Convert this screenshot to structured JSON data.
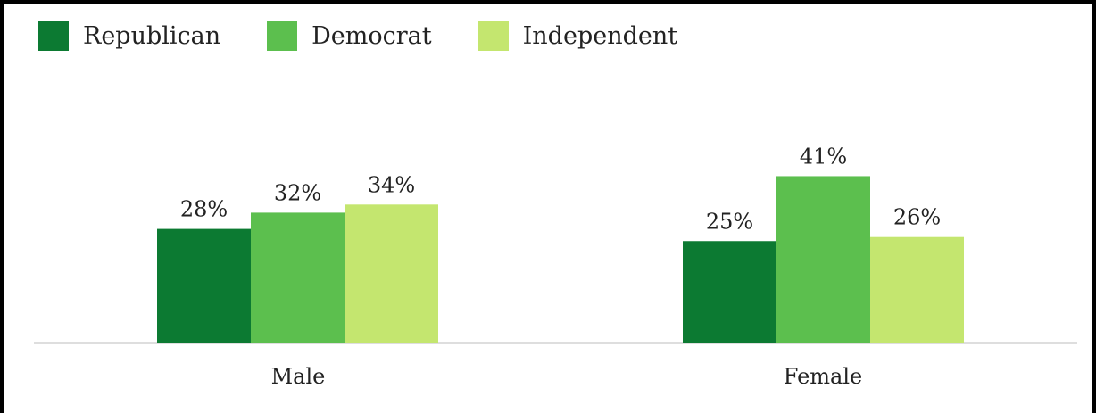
{
  "chart_data": {
    "type": "bar",
    "categories": [
      "Male",
      "Female"
    ],
    "series": [
      {
        "name": "Republican",
        "values": [
          28,
          25
        ],
        "labels": [
          "28%",
          "25%"
        ],
        "color": "#0c7a32"
      },
      {
        "name": "Democrat",
        "values": [
          32,
          41
        ],
        "labels": [
          "32%",
          "41%"
        ],
        "color": "#5cbf4e"
      },
      {
        "name": "Independent",
        "values": [
          34,
          26
        ],
        "labels": [
          "34%",
          "26%"
        ],
        "color": "#c4e66f"
      }
    ],
    "title": "",
    "xlabel": "",
    "ylabel": "",
    "ylim": [
      0,
      50
    ],
    "grid": false,
    "legend_position": "top-left",
    "axis_color": "#bdbdbd"
  }
}
